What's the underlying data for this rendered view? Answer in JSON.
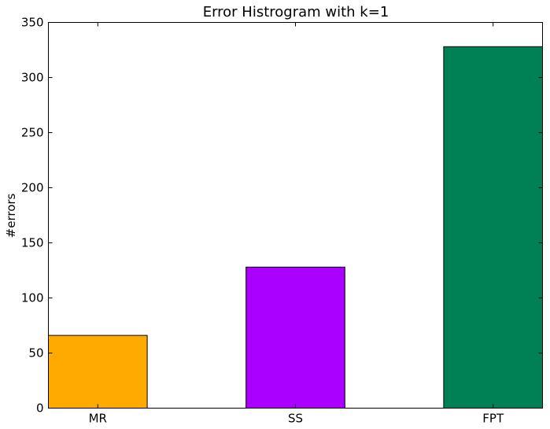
{
  "chart_data": {
    "type": "bar",
    "title": "Error Histrogram with k=1",
    "xlabel": "",
    "ylabel": "#errors",
    "categories": [
      "MR",
      "SS",
      "FPT"
    ],
    "values": [
      66,
      128,
      328
    ],
    "colors": [
      "#ffaa00",
      "#aa00ff",
      "#008055"
    ],
    "ylim": [
      0,
      350
    ],
    "yticks": [
      0,
      50,
      100,
      150,
      200,
      250,
      300,
      350
    ],
    "ytick_labels": [
      "0",
      "50",
      "100",
      "150",
      "200",
      "250",
      "300",
      "350"
    ],
    "grid": false,
    "legend": "none"
  }
}
